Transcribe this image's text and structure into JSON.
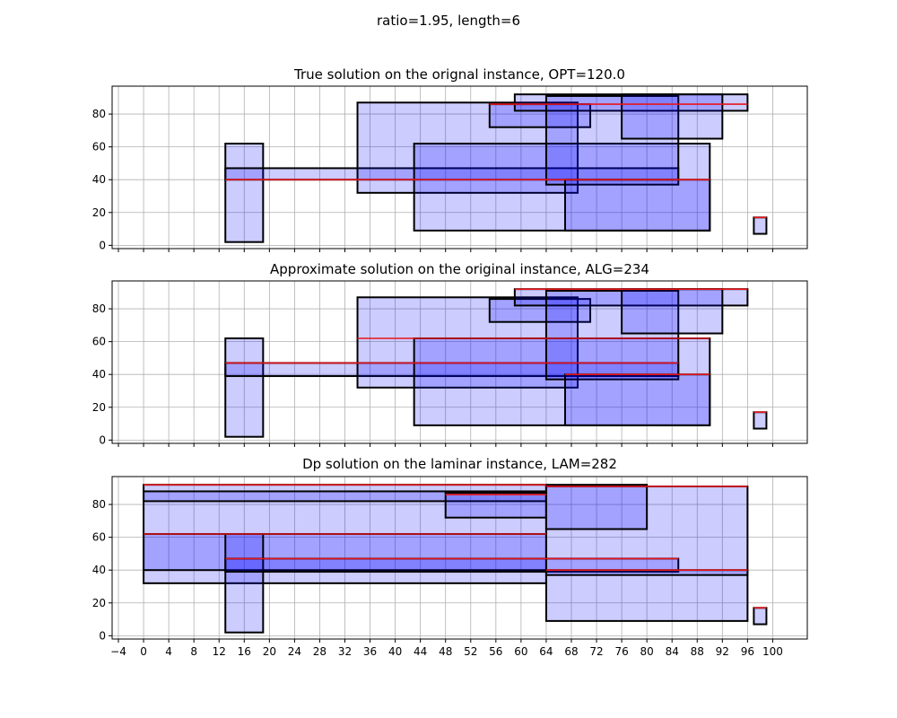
{
  "figure_title": "ratio=1.95, length=6",
  "chart_data": [
    {
      "type": "interval-rectangles",
      "title": "True solution on the orignal instance, OPT=120.0",
      "xlim": [
        -5,
        105.5
      ],
      "ylim": [
        -2,
        97
      ],
      "grid": true,
      "yticks": [
        0,
        20,
        40,
        60,
        80
      ],
      "xticks": [
        -4,
        0,
        4,
        8,
        12,
        16,
        20,
        24,
        28,
        32,
        36,
        40,
        44,
        48,
        52,
        56,
        60,
        64,
        68,
        72,
        76,
        80,
        84,
        88,
        92,
        96,
        100
      ],
      "show_xticklabels": false,
      "rects": [
        {
          "x0": 13,
          "x1": 19,
          "y0": 2,
          "y1": 62
        },
        {
          "x0": 13,
          "x1": 85,
          "y0": 40,
          "y1": 47
        },
        {
          "x0": 34,
          "x1": 69,
          "y0": 32,
          "y1": 87
        },
        {
          "x0": 43,
          "x1": 90,
          "y0": 9,
          "y1": 62
        },
        {
          "x0": 55,
          "x1": 71,
          "y0": 72,
          "y1": 86
        },
        {
          "x0": 59,
          "x1": 96,
          "y0": 82,
          "y1": 92
        },
        {
          "x0": 64,
          "x1": 85,
          "y0": 37,
          "y1": 91
        },
        {
          "x0": 67,
          "x1": 90,
          "y0": 9,
          "y1": 40
        },
        {
          "x0": 76,
          "x1": 92,
          "y0": 65,
          "y1": 92
        },
        {
          "x0": 97,
          "x1": 99,
          "y0": 7,
          "y1": 17
        }
      ],
      "red_lines": [
        {
          "x0": 13,
          "x1": 90,
          "y": 40
        },
        {
          "x0": 55,
          "x1": 96,
          "y": 86
        },
        {
          "x0": 97,
          "x1": 99,
          "y": 17
        }
      ]
    },
    {
      "type": "interval-rectangles",
      "title": "Approximate solution on the original instance, ALG=234",
      "xlim": [
        -5,
        105.5
      ],
      "ylim": [
        -2,
        97
      ],
      "grid": true,
      "yticks": [
        0,
        20,
        40,
        60,
        80
      ],
      "xticks": [
        -4,
        0,
        4,
        8,
        12,
        16,
        20,
        24,
        28,
        32,
        36,
        40,
        44,
        48,
        52,
        56,
        60,
        64,
        68,
        72,
        76,
        80,
        84,
        88,
        92,
        96,
        100
      ],
      "show_xticklabels": false,
      "rects": [
        {
          "x0": 13,
          "x1": 19,
          "y0": 2,
          "y1": 62
        },
        {
          "x0": 13,
          "x1": 85,
          "y0": 39,
          "y1": 47
        },
        {
          "x0": 34,
          "x1": 69,
          "y0": 32,
          "y1": 87
        },
        {
          "x0": 43,
          "x1": 90,
          "y0": 9,
          "y1": 62
        },
        {
          "x0": 55,
          "x1": 71,
          "y0": 72,
          "y1": 86
        },
        {
          "x0": 59,
          "x1": 96,
          "y0": 82,
          "y1": 92
        },
        {
          "x0": 64,
          "x1": 85,
          "y0": 37,
          "y1": 91
        },
        {
          "x0": 67,
          "x1": 90,
          "y0": 9,
          "y1": 40
        },
        {
          "x0": 76,
          "x1": 92,
          "y0": 65,
          "y1": 92
        },
        {
          "x0": 97,
          "x1": 99,
          "y0": 7,
          "y1": 17
        }
      ],
      "red_lines": [
        {
          "x0": 13,
          "x1": 85,
          "y": 47
        },
        {
          "x0": 34,
          "x1": 90,
          "y": 62
        },
        {
          "x0": 67,
          "x1": 90,
          "y": 40
        },
        {
          "x0": 59,
          "x1": 96,
          "y": 92
        },
        {
          "x0": 97,
          "x1": 99,
          "y": 17
        }
      ]
    },
    {
      "type": "interval-rectangles",
      "title": "Dp solution on the laminar instance, LAM=282",
      "xlim": [
        -5,
        105.5
      ],
      "ylim": [
        -2,
        97
      ],
      "grid": true,
      "yticks": [
        0,
        20,
        40,
        60,
        80
      ],
      "xticks": [
        -4,
        0,
        4,
        8,
        12,
        16,
        20,
        24,
        28,
        32,
        36,
        40,
        44,
        48,
        52,
        56,
        60,
        64,
        68,
        72,
        76,
        80,
        84,
        88,
        92,
        96,
        100
      ],
      "show_xticklabels": true,
      "rects": [
        {
          "x0": 0,
          "x1": 64,
          "y0": 32,
          "y1": 92
        },
        {
          "x0": 0,
          "x1": 64,
          "y0": 82,
          "y1": 88
        },
        {
          "x0": 0,
          "x1": 64,
          "y0": 40,
          "y1": 62
        },
        {
          "x0": 13,
          "x1": 19,
          "y0": 2,
          "y1": 62
        },
        {
          "x0": 13,
          "x1": 85,
          "y0": 39,
          "y1": 47
        },
        {
          "x0": 48,
          "x1": 64,
          "y0": 72,
          "y1": 87
        },
        {
          "x0": 64,
          "x1": 96,
          "y0": 9,
          "y1": 91
        },
        {
          "x0": 64,
          "x1": 80,
          "y0": 65,
          "y1": 92
        },
        {
          "x0": 64,
          "x1": 96,
          "y0": 37,
          "y1": 40
        },
        {
          "x0": 97,
          "x1": 99,
          "y0": 7,
          "y1": 17
        }
      ],
      "red_lines": [
        {
          "x0": 0,
          "x1": 64,
          "y": 92
        },
        {
          "x0": 0,
          "x1": 64,
          "y": 62
        },
        {
          "x0": 13,
          "x1": 85,
          "y": 47
        },
        {
          "x0": 48,
          "x1": 64,
          "y": 86
        },
        {
          "x0": 64,
          "x1": 96,
          "y": 91
        },
        {
          "x0": 64,
          "x1": 96,
          "y": 40
        },
        {
          "x0": 97,
          "x1": 99,
          "y": 17
        }
      ]
    }
  ],
  "colors": {
    "rect_fill": "#0000ff",
    "rect_edge": "#000000",
    "red_line": "#e8151b",
    "grid": "#b0b0b0",
    "axes_frame": "#000000"
  }
}
